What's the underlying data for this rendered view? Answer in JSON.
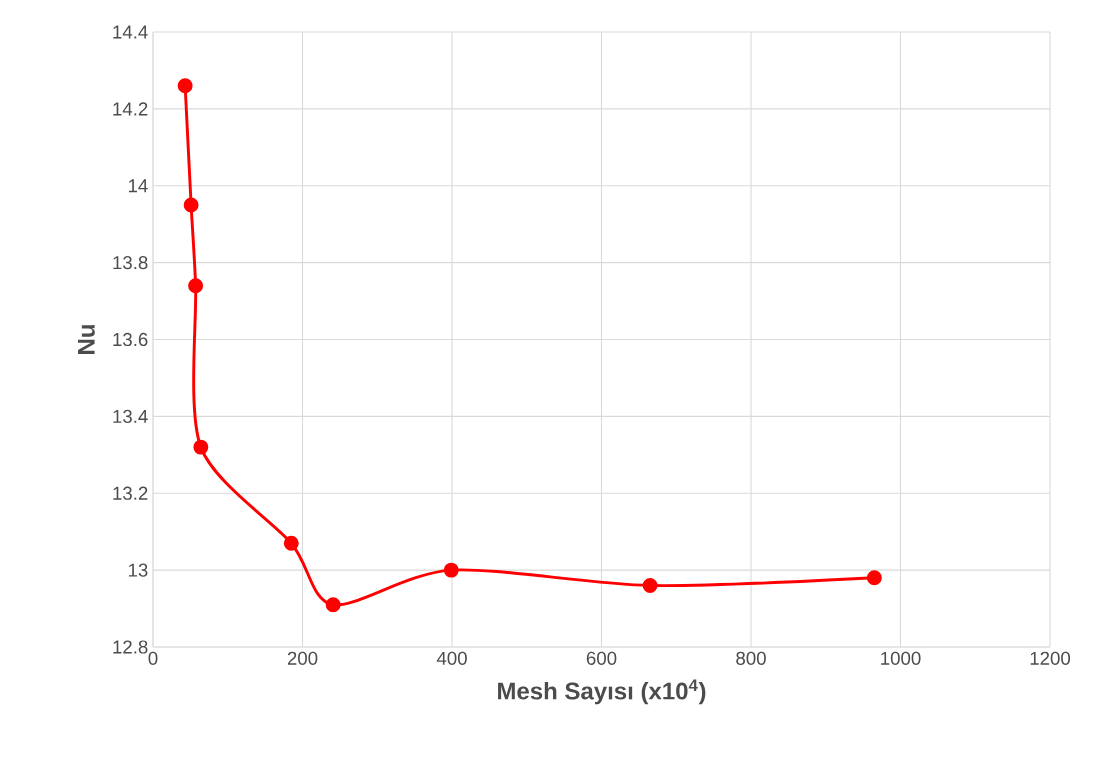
{
  "chart_data": {
    "type": "line",
    "xlabel": "Mesh Sayısı (x10$^{4}$)",
    "ylabel": "Nu",
    "x": [
      43,
      51,
      57,
      64,
      185,
      241,
      399,
      665,
      965
    ],
    "series": [
      {
        "color": "#ff0000",
        "values": [
          14.26,
          13.95,
          13.74,
          13.32,
          13.07,
          12.91,
          13.0,
          12.96,
          12.98
        ]
      }
    ],
    "xlim": [
      0,
      1200
    ],
    "xticks": [
      0,
      200,
      400,
      600,
      800,
      1000,
      1200
    ],
    "ylim": [
      12.8,
      14.4
    ],
    "yticks": [
      12.8,
      13,
      13.2,
      13.4,
      13.6,
      13.8,
      14,
      14.2,
      14.4
    ],
    "grid": true,
    "marker": "circle",
    "line_style": "solid"
  }
}
